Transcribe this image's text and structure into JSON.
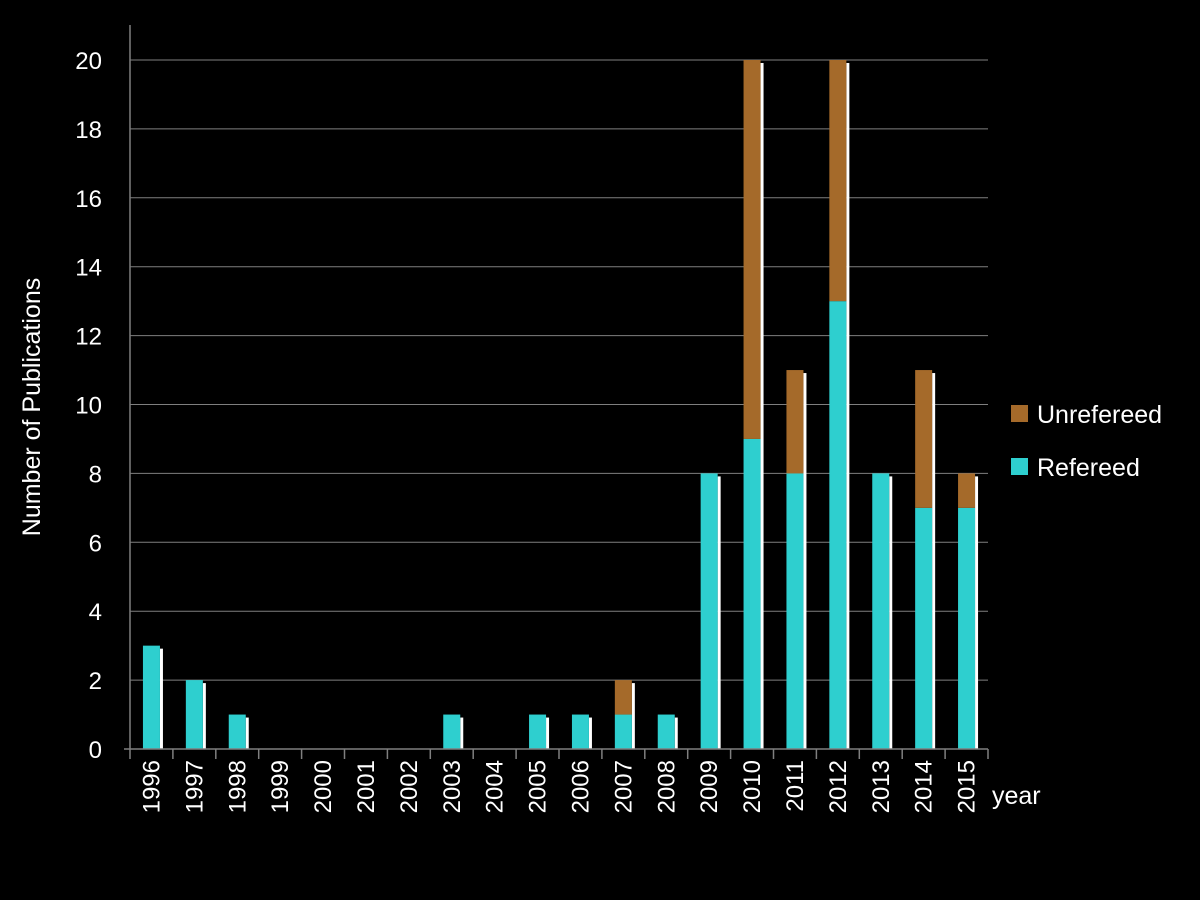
{
  "chart_data": {
    "type": "bar",
    "stacked": true,
    "categories": [
      "1996",
      "1997",
      "1998",
      "1999",
      "2000",
      "2001",
      "2002",
      "2003",
      "2004",
      "2005",
      "2006",
      "2007",
      "2008",
      "2009",
      "2010",
      "2011",
      "2012",
      "2013",
      "2014",
      "2015"
    ],
    "series": [
      {
        "name": "Refereed",
        "color": "#2ecfcf",
        "values": [
          3,
          2,
          1,
          0,
          0,
          0,
          0,
          1,
          0,
          1,
          1,
          1,
          1,
          8,
          9,
          8,
          13,
          8,
          7,
          7
        ]
      },
      {
        "name": "Unrefereed",
        "color": "#a56a2a",
        "values": [
          0,
          0,
          0,
          0,
          0,
          0,
          0,
          0,
          0,
          0,
          0,
          1,
          0,
          0,
          11,
          3,
          7,
          0,
          4,
          1
        ]
      }
    ],
    "xlabel": "year",
    "ylabel": "Number of Publications",
    "ylim": [
      0,
      20
    ],
    "yticks": [
      "0",
      "2",
      "4",
      "6",
      "8",
      "10",
      "12",
      "14",
      "16",
      "18",
      "20"
    ],
    "grid": true,
    "legend_position": "right",
    "legend_order": [
      "Unrefereed",
      "Refereed"
    ],
    "colors": {
      "background": "#000000",
      "text": "#ffffff",
      "grid": "#7f7f7f",
      "bar_shadow": "#ffffff"
    }
  }
}
